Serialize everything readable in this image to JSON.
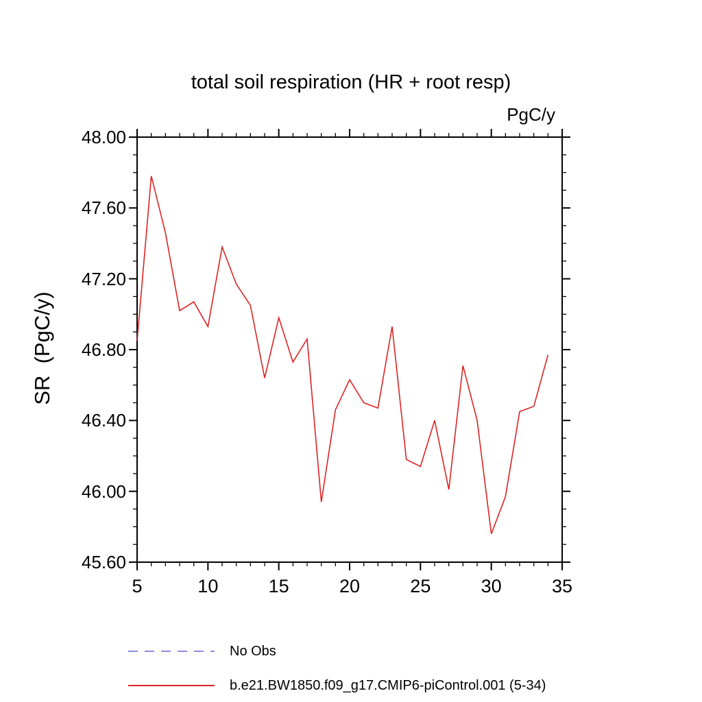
{
  "title": "total soil respiration (HR + root resp)",
  "chart_data": {
    "type": "line",
    "title": "total soil respiration (HR + root resp)",
    "xlabel": "",
    "ylabel": "SR  (PgC/y)",
    "unit_label": "PgC/y",
    "xlim": [
      5,
      35
    ],
    "ylim": [
      45.6,
      48.0
    ],
    "xticks": [
      5,
      10,
      15,
      20,
      25,
      30,
      35
    ],
    "xtick_labels": [
      "5",
      "10",
      "15",
      "20",
      "25",
      "30",
      "35"
    ],
    "x_minor_step": 1,
    "yticks": [
      45.6,
      46.0,
      46.4,
      46.8,
      47.2,
      47.6,
      48.0
    ],
    "ytick_labels": [
      "45.60",
      "46.00",
      "46.40",
      "46.80",
      "47.20",
      "47.60",
      "48.00"
    ],
    "y_minor_step": 0.1,
    "grid": false,
    "legend_position": "bottom-left",
    "series": [
      {
        "name": "b.e21.BW1850.f09_g17.CMIP6-piControl.001 (5-34)",
        "color": "#dd2222",
        "x": [
          5,
          6,
          7,
          8,
          9,
          10,
          11,
          12,
          13,
          14,
          15,
          16,
          17,
          18,
          19,
          20,
          21,
          22,
          23,
          24,
          25,
          26,
          27,
          28,
          29,
          30,
          31,
          32,
          33,
          34
        ],
        "values": [
          46.85,
          47.78,
          47.46,
          47.02,
          47.07,
          46.93,
          47.38,
          47.17,
          47.05,
          46.64,
          46.98,
          46.73,
          46.86,
          45.94,
          46.46,
          46.63,
          46.5,
          46.47,
          46.93,
          46.18,
          46.14,
          46.4,
          46.01,
          46.71,
          46.4,
          45.76,
          45.97,
          46.45,
          46.48,
          46.77
        ]
      }
    ]
  },
  "legend": [
    {
      "label": "No Obs",
      "color": "#8a8ae0",
      "dash": "14 10"
    },
    {
      "label": "b.e21.BW1850.f09_g17.CMIP6-piControl.001 (5-34)",
      "color": "#dd2222",
      "dash": ""
    }
  ]
}
